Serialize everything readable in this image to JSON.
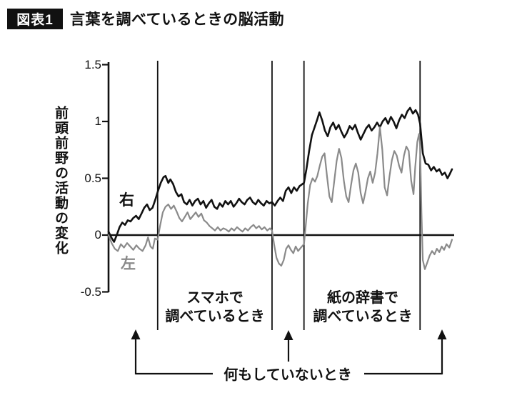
{
  "header": {
    "badge": "図表1",
    "title": "言葉を調べているときの脳活動"
  },
  "chart_data": {
    "type": "line",
    "title": "言葉を調べているときの脳活動",
    "xlabel": "",
    "ylabel": "前頭前野の活動の変化",
    "ylim": [
      -0.5,
      1.5
    ],
    "yticks": [
      {
        "v": 1.5,
        "label": "1.5"
      },
      {
        "v": 1.0,
        "label": "1"
      },
      {
        "v": 0.5,
        "label": "0.5"
      },
      {
        "v": 0.0,
        "label": "0"
      },
      {
        "v": -0.5,
        "label": "-0.5"
      }
    ],
    "grid": false,
    "x_range": [
      0,
      100
    ],
    "region_lines_t": [
      14.3,
      47.6,
      56.9,
      90.7
    ],
    "regions": [
      {
        "label_line1": "スマホで",
        "label_line2": "調べているとき",
        "from_t": 14.3,
        "to_t": 47.6
      },
      {
        "label_line1": "紙の辞書で",
        "label_line2": "調べているとき",
        "from_t": 56.9,
        "to_t": 90.7
      }
    ],
    "rest_label": "何もしていないとき",
    "series": [
      {
        "id": "right",
        "name": "右",
        "color": "#111111",
        "width": 2.6,
        "points": [
          [
            0,
            0.03
          ],
          [
            0.8,
            -0.02
          ],
          [
            1.6,
            -0.06
          ],
          [
            2.4,
            0.0
          ],
          [
            3.2,
            0.07
          ],
          [
            4,
            0.11
          ],
          [
            4.8,
            0.09
          ],
          [
            5.6,
            0.13
          ],
          [
            6.4,
            0.12
          ],
          [
            7.2,
            0.15
          ],
          [
            8,
            0.17
          ],
          [
            8.8,
            0.14
          ],
          [
            9.6,
            0.19
          ],
          [
            10.4,
            0.24
          ],
          [
            11.2,
            0.27
          ],
          [
            12,
            0.22
          ],
          [
            12.8,
            0.24
          ],
          [
            13.6,
            0.31
          ],
          [
            14.3,
            0.38
          ],
          [
            15.2,
            0.46
          ],
          [
            16,
            0.51
          ],
          [
            16.6,
            0.52
          ],
          [
            17.4,
            0.46
          ],
          [
            18,
            0.49
          ],
          [
            18.8,
            0.45
          ],
          [
            19.6,
            0.38
          ],
          [
            20.4,
            0.34
          ],
          [
            21.2,
            0.36
          ],
          [
            22,
            0.29
          ],
          [
            22.8,
            0.27
          ],
          [
            23.6,
            0.31
          ],
          [
            24.4,
            0.26
          ],
          [
            25.2,
            0.3
          ],
          [
            26,
            0.32
          ],
          [
            26.8,
            0.27
          ],
          [
            27.6,
            0.3
          ],
          [
            28.4,
            0.24
          ],
          [
            29.2,
            0.28
          ],
          [
            30,
            0.31
          ],
          [
            30.8,
            0.25
          ],
          [
            31.6,
            0.23
          ],
          [
            32.4,
            0.28
          ],
          [
            33.2,
            0.25
          ],
          [
            34,
            0.3
          ],
          [
            34.8,
            0.27
          ],
          [
            35.6,
            0.3
          ],
          [
            36.4,
            0.25
          ],
          [
            37.2,
            0.28
          ],
          [
            38,
            0.32
          ],
          [
            38.8,
            0.29
          ],
          [
            39.6,
            0.27
          ],
          [
            40.4,
            0.31
          ],
          [
            41.2,
            0.33
          ],
          [
            42,
            0.29
          ],
          [
            42.8,
            0.27
          ],
          [
            43.6,
            0.31
          ],
          [
            44.4,
            0.28
          ],
          [
            45.2,
            0.26
          ],
          [
            46,
            0.3
          ],
          [
            46.8,
            0.28
          ],
          [
            47.6,
            0.29
          ],
          [
            48.4,
            0.26
          ],
          [
            49.2,
            0.3
          ],
          [
            50,
            0.33
          ],
          [
            50.8,
            0.3
          ],
          [
            51.6,
            0.39
          ],
          [
            52.4,
            0.42
          ],
          [
            53.2,
            0.37
          ],
          [
            54,
            0.42
          ],
          [
            54.8,
            0.39
          ],
          [
            55.6,
            0.43
          ],
          [
            56.9,
            0.46
          ],
          [
            57.6,
            0.58
          ],
          [
            58.4,
            0.74
          ],
          [
            59.2,
            0.88
          ],
          [
            60,
            0.95
          ],
          [
            60.8,
            1.02
          ],
          [
            61.4,
            1.08
          ],
          [
            62.2,
            1.01
          ],
          [
            63,
            0.92
          ],
          [
            63.8,
            0.87
          ],
          [
            64.6,
            0.95
          ],
          [
            65.4,
            0.99
          ],
          [
            66.2,
            0.93
          ],
          [
            67,
            0.97
          ],
          [
            67.8,
            0.91
          ],
          [
            68.6,
            0.86
          ],
          [
            69.4,
            0.9
          ],
          [
            70.2,
            0.96
          ],
          [
            71,
            0.93
          ],
          [
            71.8,
            0.97
          ],
          [
            72.6,
            0.9
          ],
          [
            73.4,
            0.84
          ],
          [
            74.2,
            0.89
          ],
          [
            75,
            0.94
          ],
          [
            75.8,
            0.97
          ],
          [
            76.6,
            0.92
          ],
          [
            77.4,
            0.95
          ],
          [
            78.2,
            0.99
          ],
          [
            79,
            0.95
          ],
          [
            79.8,
            1.0
          ],
          [
            80.6,
            1.03
          ],
          [
            81.4,
            0.98
          ],
          [
            82.2,
            1.04
          ],
          [
            83,
            1.0
          ],
          [
            83.8,
            0.94
          ],
          [
            84.6,
            1.01
          ],
          [
            85.4,
            1.06
          ],
          [
            86.2,
            1.03
          ],
          [
            87,
            1.09
          ],
          [
            87.8,
            1.12
          ],
          [
            88.6,
            1.07
          ],
          [
            89.4,
            1.1
          ],
          [
            90.1,
            1.06
          ],
          [
            90.7,
            0.98
          ],
          [
            91.5,
            0.72
          ],
          [
            92.3,
            0.63
          ],
          [
            93.1,
            0.62
          ],
          [
            93.9,
            0.57
          ],
          [
            94.7,
            0.6
          ],
          [
            95.5,
            0.56
          ],
          [
            96.3,
            0.58
          ],
          [
            97.1,
            0.53
          ],
          [
            97.9,
            0.55
          ],
          [
            98.7,
            0.5
          ],
          [
            99.4,
            0.54
          ],
          [
            100,
            0.58
          ]
        ]
      },
      {
        "id": "left",
        "name": "左",
        "color": "#8a8a8a",
        "width": 2.2,
        "points": [
          [
            0,
            0.0
          ],
          [
            0.9,
            -0.07
          ],
          [
            1.8,
            -0.12
          ],
          [
            2.7,
            -0.14
          ],
          [
            3.6,
            -0.08
          ],
          [
            4.5,
            -0.11
          ],
          [
            5.4,
            -0.07
          ],
          [
            6.3,
            -0.1
          ],
          [
            7.2,
            -0.13
          ],
          [
            8.1,
            -0.09
          ],
          [
            9,
            -0.12
          ],
          [
            9.9,
            -0.14
          ],
          [
            10.8,
            -0.09
          ],
          [
            11.5,
            -0.02
          ],
          [
            12.2,
            -0.1
          ],
          [
            12.9,
            -0.12
          ],
          [
            13.5,
            -0.03
          ],
          [
            14.3,
            -0.04
          ],
          [
            15,
            0.08
          ],
          [
            15.8,
            0.2
          ],
          [
            16.6,
            0.25
          ],
          [
            17.4,
            0.27
          ],
          [
            18.2,
            0.23
          ],
          [
            19,
            0.26
          ],
          [
            19.8,
            0.21
          ],
          [
            20.6,
            0.15
          ],
          [
            21.4,
            0.12
          ],
          [
            22.2,
            0.16
          ],
          [
            23,
            0.2
          ],
          [
            23.8,
            0.14
          ],
          [
            24.6,
            0.17
          ],
          [
            25.4,
            0.2
          ],
          [
            26.2,
            0.16
          ],
          [
            27,
            0.19
          ],
          [
            27.8,
            0.13
          ],
          [
            28.6,
            0.11
          ],
          [
            29.4,
            0.08
          ],
          [
            30.2,
            0.06
          ],
          [
            31,
            0.04
          ],
          [
            31.8,
            0.07
          ],
          [
            32.6,
            0.04
          ],
          [
            33.4,
            0.06
          ],
          [
            34.2,
            0.05
          ],
          [
            35,
            0.03
          ],
          [
            35.8,
            0.06
          ],
          [
            36.6,
            0.04
          ],
          [
            37.4,
            0.07
          ],
          [
            38.2,
            0.05
          ],
          [
            39,
            0.03
          ],
          [
            39.8,
            0.06
          ],
          [
            40.6,
            0.04
          ],
          [
            41.4,
            0.07
          ],
          [
            42.2,
            0.09
          ],
          [
            43,
            0.06
          ],
          [
            43.8,
            0.08
          ],
          [
            44.6,
            0.05
          ],
          [
            45.4,
            0.07
          ],
          [
            46.2,
            0.04
          ],
          [
            47,
            0.06
          ],
          [
            47.6,
            0.04
          ],
          [
            48.2,
            -0.08
          ],
          [
            48.9,
            -0.2
          ],
          [
            49.6,
            -0.25
          ],
          [
            50.3,
            -0.27
          ],
          [
            51,
            -0.22
          ],
          [
            51.7,
            -0.12
          ],
          [
            52.4,
            -0.09
          ],
          [
            53.1,
            -0.13
          ],
          [
            53.8,
            -0.16
          ],
          [
            54.5,
            -0.1
          ],
          [
            55.2,
            -0.14
          ],
          [
            56,
            -0.11
          ],
          [
            56.9,
            -0.08
          ],
          [
            57.4,
            0.08
          ],
          [
            58,
            0.28
          ],
          [
            58.7,
            0.44
          ],
          [
            59.4,
            0.5
          ],
          [
            60.1,
            0.47
          ],
          [
            60.8,
            0.52
          ],
          [
            61.5,
            0.61
          ],
          [
            62.2,
            0.69
          ],
          [
            62.9,
            0.72
          ],
          [
            63.6,
            0.52
          ],
          [
            64.3,
            0.34
          ],
          [
            65,
            0.29
          ],
          [
            65.7,
            0.47
          ],
          [
            66.4,
            0.65
          ],
          [
            67.1,
            0.76
          ],
          [
            67.8,
            0.68
          ],
          [
            68.5,
            0.48
          ],
          [
            69.2,
            0.34
          ],
          [
            69.9,
            0.29
          ],
          [
            70.6,
            0.44
          ],
          [
            71.3,
            0.57
          ],
          [
            72,
            0.63
          ],
          [
            72.7,
            0.55
          ],
          [
            73.4,
            0.37
          ],
          [
            74.1,
            0.28
          ],
          [
            74.8,
            0.38
          ],
          [
            75.5,
            0.5
          ],
          [
            76.2,
            0.56
          ],
          [
            76.9,
            0.46
          ],
          [
            77.6,
            0.55
          ],
          [
            78.3,
            0.72
          ],
          [
            79,
            0.95
          ],
          [
            79.7,
            0.75
          ],
          [
            80.4,
            0.42
          ],
          [
            81.1,
            0.35
          ],
          [
            81.8,
            0.52
          ],
          [
            82.5,
            0.66
          ],
          [
            83.2,
            0.74
          ],
          [
            83.9,
            0.7
          ],
          [
            84.6,
            0.61
          ],
          [
            85.3,
            0.55
          ],
          [
            86,
            0.7
          ],
          [
            86.7,
            0.78
          ],
          [
            87.4,
            0.74
          ],
          [
            88.1,
            0.48
          ],
          [
            88.8,
            0.36
          ],
          [
            89.3,
            0.6
          ],
          [
            89.9,
            0.82
          ],
          [
            90.4,
            0.89
          ],
          [
            90.7,
            0.8
          ],
          [
            91.1,
            0.2
          ],
          [
            91.5,
            -0.22
          ],
          [
            92.1,
            -0.3
          ],
          [
            92.8,
            -0.24
          ],
          [
            93.5,
            -0.18
          ],
          [
            94.2,
            -0.14
          ],
          [
            94.9,
            -0.17
          ],
          [
            95.6,
            -0.12
          ],
          [
            96.3,
            -0.15
          ],
          [
            97,
            -0.1
          ],
          [
            97.7,
            -0.13
          ],
          [
            98.4,
            -0.08
          ],
          [
            99.2,
            -0.11
          ],
          [
            100,
            -0.04
          ]
        ]
      }
    ]
  }
}
